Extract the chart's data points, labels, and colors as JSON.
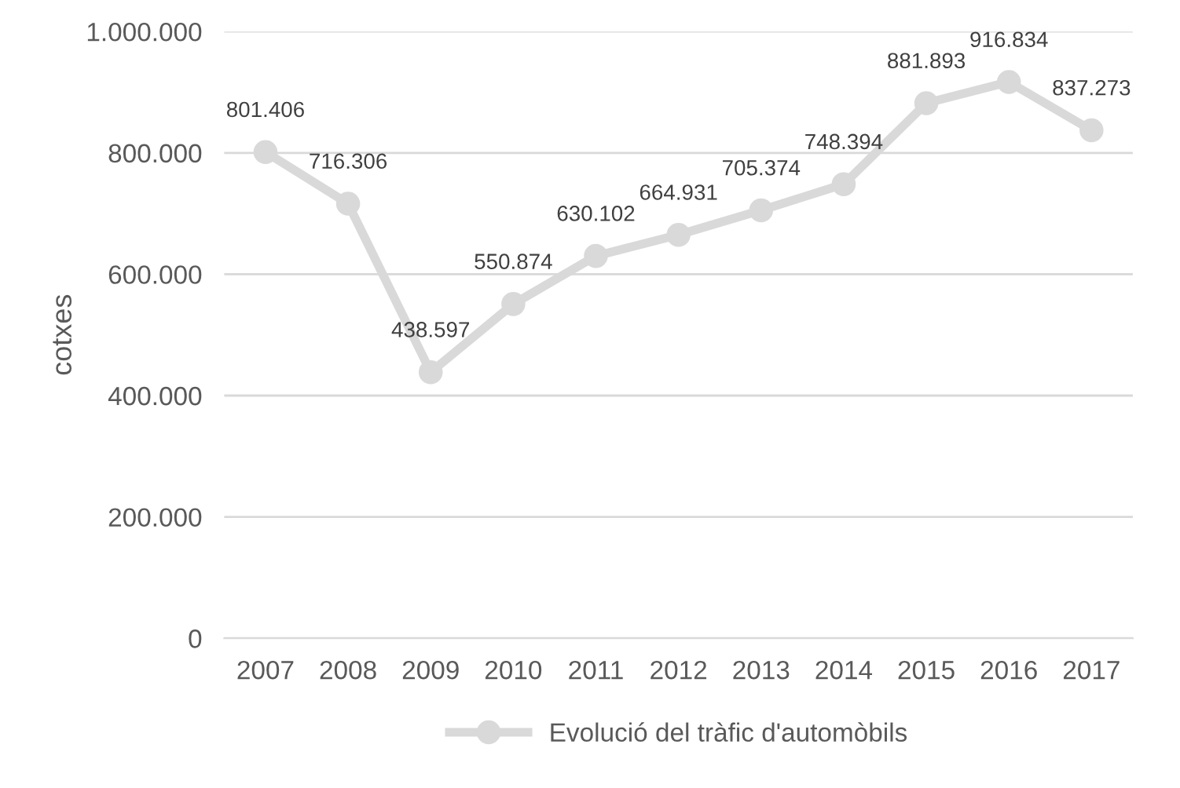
{
  "chart_data": {
    "type": "line",
    "ylabel": "cotxes",
    "categories": [
      "2007",
      "2008",
      "2009",
      "2010",
      "2011",
      "2012",
      "2013",
      "2014",
      "2015",
      "2016",
      "2017"
    ],
    "series": [
      {
        "name": "Evolució del tràfic d'automòbils",
        "color": "#d9d9d9",
        "values": [
          801406,
          716306,
          438597,
          550874,
          630102,
          664931,
          705374,
          748394,
          881893,
          916834,
          837273
        ],
        "value_labels": [
          "801.406",
          "716.306",
          "438.597",
          "550.874",
          "630.102",
          "664.931",
          "705.374",
          "748.394",
          "881.893",
          "916.834",
          "837.273"
        ]
      }
    ],
    "ylim": [
      0,
      1000000
    ],
    "yticks": [
      {
        "value": 0,
        "label": "0"
      },
      {
        "value": 200000,
        "label": "200.000"
      },
      {
        "value": 400000,
        "label": "400.000"
      },
      {
        "value": 600000,
        "label": "600.000"
      },
      {
        "value": 800000,
        "label": "800.000"
      },
      {
        "value": 1000000,
        "label": "1.000.000"
      }
    ],
    "grid": "y",
    "legend": "bottom",
    "marker": "circle",
    "line_style": "solid"
  }
}
